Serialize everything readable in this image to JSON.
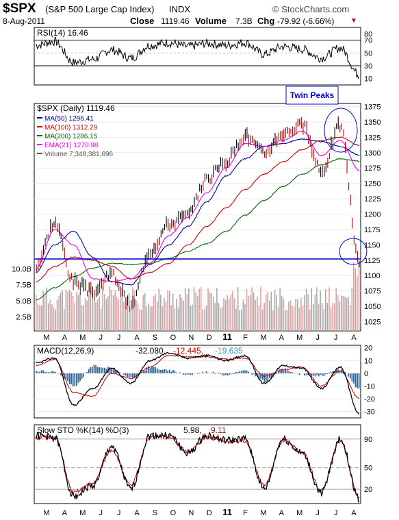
{
  "header": {
    "symbol": "$SPX",
    "name": "(S&P 500 Large Cap Index)",
    "exchange": "INDX",
    "date": "8-Aug-2011",
    "close_label": "Close",
    "close_value": "1119.46",
    "volume_label": "Volume",
    "volume_value": "7.3B",
    "chg_label": "Chg",
    "chg_value": "-79.92 (-6.66%)",
    "chg_arrow": "▼",
    "brand": "© StockCharts.com"
  },
  "colors": {
    "price": "#000000",
    "up_bar": "#000000",
    "down_bar": "#cc0000",
    "ma50": "#000099",
    "ma100": "#cc0000",
    "ma200": "#006600",
    "ema21": "#ee00ee",
    "volume": "#aaaaaa",
    "volume_down": "#e8a0a0",
    "hline": "#0000cc",
    "annotation": "#0000cc",
    "macd_hist": "#336699",
    "stoch_d": "#cc0000",
    "grid": "#dddddd"
  },
  "x_months": [
    "M",
    "A",
    "M",
    "J",
    "J",
    "A",
    "S",
    "O",
    "N",
    "D",
    "11",
    "F",
    "M",
    "A",
    "M",
    "J",
    "J",
    "A"
  ],
  "panels": {
    "rsi": {
      "label": "RSI(14) 16.46",
      "ticks": [
        "80",
        "70",
        "50",
        "30",
        "10"
      ],
      "annotation": "Twin Peaks"
    },
    "price": {
      "label": "$SPX (Daily) 1119.46",
      "legend": [
        {
          "text": "MA(50) 1296.41",
          "color": "#000099"
        },
        {
          "text": "MA(100) 1312.29",
          "color": "#cc0000"
        },
        {
          "text": "MA(200) 1286.15",
          "color": "#006600"
        },
        {
          "text": "EMA(21) 1270.98",
          "color": "#ee00ee"
        },
        {
          "text": "Volume 7,348,381,696",
          "color": "#555555"
        }
      ],
      "ticks": [
        "1375",
        "1350",
        "1325",
        "1300",
        "1275",
        "1250",
        "1225",
        "1200",
        "1175",
        "1150",
        "1125",
        "1100",
        "1075",
        "1050",
        "1025"
      ],
      "vol_ticks": [
        "10.0B",
        "7.5B",
        "5.0B",
        "2.5B"
      ]
    },
    "macd": {
      "label_prefix": "MACD(12,26,9)",
      "v1": "-32.080,",
      "v2": "-12.445,",
      "v3": "-19.635",
      "ticks": [
        "20",
        "10",
        "0",
        "-10",
        "-20",
        "-30"
      ]
    },
    "sto": {
      "label_prefix": "Slow STO %K(14) %D(3)",
      "v1": "5.98,",
      "v2": "9.11",
      "ticks": [
        "90",
        "50",
        "20"
      ]
    }
  },
  "chart_data": {
    "type": "line",
    "title": "$SPX (S&P 500 Large Cap Index) INDX",
    "x": [
      "2010-03",
      "2010-04",
      "2010-05",
      "2010-06",
      "2010-07",
      "2010-08",
      "2010-09",
      "2010-10",
      "2010-11",
      "2010-12",
      "2011-01",
      "2011-02",
      "2011-03",
      "2011-04",
      "2011-05",
      "2011-06",
      "2011-07",
      "2011-08"
    ],
    "ylim": [
      1010,
      1380
    ],
    "horizontal_line": 1127,
    "series": [
      {
        "name": "$SPX (Daily)",
        "values": [
          1115,
          1186,
          1090,
          1073,
          1102,
          1050,
          1140,
          1184,
          1198,
          1258,
          1286,
          1328,
          1300,
          1332,
          1345,
          1269,
          1345,
          1119
        ]
      },
      {
        "name": "MA(50)",
        "values": [
          1105,
          1150,
          1172,
          1130,
          1090,
          1085,
          1118,
          1150,
          1180,
          1220,
          1262,
          1290,
          1310,
          1315,
          1322,
          1318,
          1310,
          1296
        ]
      },
      {
        "name": "MA(100)",
        "values": [
          1090,
          1115,
          1130,
          1125,
          1115,
          1095,
          1105,
          1120,
          1150,
          1180,
          1210,
          1240,
          1265,
          1285,
          1305,
          1320,
          1325,
          1312
        ]
      },
      {
        "name": "MA(200)",
        "values": [
          1060,
          1080,
          1098,
          1112,
          1120,
          1118,
          1120,
          1128,
          1140,
          1152,
          1172,
          1198,
          1222,
          1245,
          1265,
          1280,
          1290,
          1286
        ]
      },
      {
        "name": "EMA(21)",
        "values": [
          1110,
          1175,
          1150,
          1095,
          1090,
          1095,
          1120,
          1165,
          1195,
          1235,
          1275,
          1315,
          1310,
          1320,
          1335,
          1295,
          1320,
          1271
        ]
      }
    ],
    "rsi": {
      "name": "RSI(14)",
      "ylim": [
        0,
        90
      ],
      "values": [
        62,
        68,
        35,
        40,
        55,
        42,
        62,
        66,
        60,
        65,
        62,
        66,
        48,
        60,
        56,
        42,
        58,
        16
      ]
    },
    "macd": {
      "name": "MACD(12,26,9)",
      "ylim": [
        -35,
        22
      ],
      "macd": [
        8,
        12,
        -25,
        -12,
        4,
        -8,
        10,
        16,
        12,
        14,
        10,
        14,
        -8,
        6,
        4,
        -12,
        5,
        -32
      ],
      "signal": [
        6,
        11,
        -15,
        -18,
        0,
        -4,
        5,
        14,
        13,
        13,
        11,
        12,
        -2,
        3,
        5,
        -10,
        2,
        -20
      ],
      "histogram": [
        2,
        1,
        -10,
        6,
        4,
        -4,
        5,
        2,
        -1,
        1,
        -1,
        2,
        -6,
        3,
        -1,
        -2,
        3,
        -12
      ]
    },
    "stochastic": {
      "name": "Slow STO %K(14) %D(3)",
      "ylim": [
        0,
        110
      ],
      "k": [
        95,
        92,
        10,
        25,
        80,
        20,
        95,
        95,
        70,
        95,
        88,
        90,
        20,
        90,
        70,
        15,
        90,
        6
      ],
      "d": [
        92,
        93,
        15,
        28,
        75,
        25,
        92,
        94,
        72,
        93,
        86,
        88,
        25,
        88,
        72,
        18,
        88,
        9
      ]
    }
  }
}
